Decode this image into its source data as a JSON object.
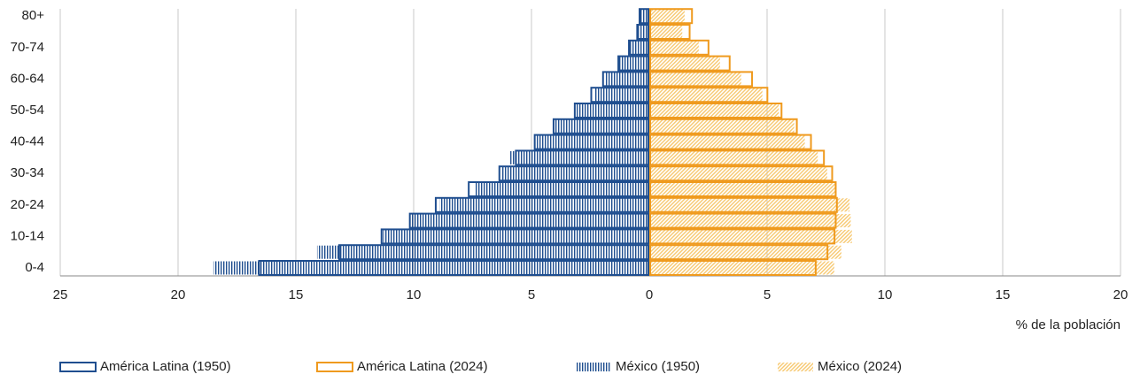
{
  "chart_data": {
    "type": "pyramid",
    "x_label": "% de la población",
    "categories": [
      "0-4",
      null,
      "10-14",
      null,
      "20-24",
      null,
      "30-34",
      null,
      "40-44",
      null,
      "50-54",
      null,
      "60-64",
      null,
      "70-74",
      null,
      "80+"
    ],
    "xlim": [
      -25,
      20
    ],
    "xticks": [
      {
        "value": -25,
        "label": "25"
      },
      {
        "value": -20,
        "label": "20"
      },
      {
        "value": -15,
        "label": "15"
      },
      {
        "value": -10,
        "label": "10"
      },
      {
        "value": -5,
        "label": "5"
      },
      0,
      5,
      10,
      15,
      20
    ],
    "grid": true,
    "series": [
      {
        "name": "México (1950)",
        "color": "#1f4e8f",
        "style": "hatch-vertical",
        "values": [
          -18.5,
          -14.1,
          -11.3,
          -10.1,
          -8.9,
          -7.4,
          -6.3,
          -5.9,
          -4.8,
          -4.0,
          -3.15,
          -2.35,
          -1.9,
          -1.3,
          -0.85,
          -0.5,
          -0.4
        ]
      },
      {
        "name": "México (2024)",
        "color": "#f7c870",
        "style": "hatch-diagonal",
        "values": [
          7.85,
          8.15,
          8.6,
          8.55,
          8.5,
          7.95,
          7.55,
          7.15,
          6.6,
          6.15,
          5.5,
          4.8,
          3.9,
          3.0,
          2.1,
          1.4,
          1.5
        ]
      },
      {
        "name": "América Latina (1950)",
        "color": "#1f4e8f",
        "style": "outline",
        "values": [
          -16.6,
          -13.2,
          -11.4,
          -10.2,
          -9.1,
          -7.7,
          -6.4,
          -5.7,
          -4.9,
          -4.1,
          -3.2,
          -2.5,
          -2.0,
          -1.35,
          -0.9,
          -0.55,
          -0.45
        ]
      },
      {
        "name": "América Latina (2024)",
        "color": "#ef9a1e",
        "style": "outline",
        "values": [
          7.1,
          7.6,
          7.9,
          7.95,
          8.0,
          7.95,
          7.8,
          7.45,
          6.9,
          6.3,
          5.65,
          5.05,
          4.4,
          3.45,
          2.55,
          1.75,
          1.85
        ]
      }
    ],
    "legend_order": [
      2,
      3,
      0,
      1
    ],
    "legend_position": "bottom"
  }
}
